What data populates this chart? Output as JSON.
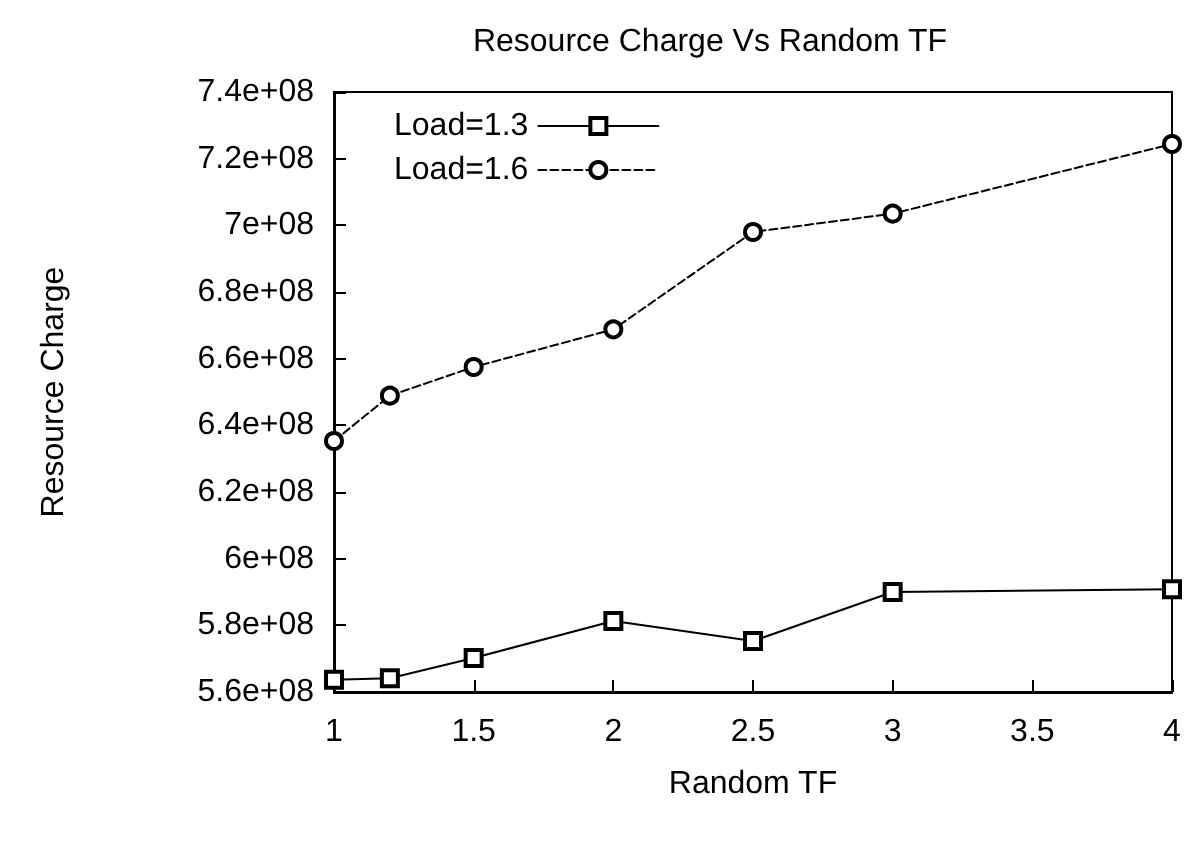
{
  "chart_data": {
    "type": "line",
    "title": "Resource Charge Vs Random TF",
    "xlabel": "Random TF",
    "ylabel": "Resource Charge",
    "x": [
      1,
      1.2,
      1.5,
      2,
      2.5,
      3,
      4
    ],
    "series": [
      {
        "name": "Load=1.3",
        "color": "#000000",
        "marker": "square",
        "line_style": "solid",
        "values": [
          563700000,
          564100000,
          570200000,
          581300000,
          575300000,
          590000000,
          590800000
        ]
      },
      {
        "name": "Load=1.6",
        "color": "#000000",
        "marker": "circle",
        "line_style": "dashed",
        "values": [
          635300000,
          648900000,
          657500000,
          668800000,
          698000000,
          703500000,
          724400000
        ]
      }
    ],
    "xlim": [
      1,
      4
    ],
    "xticks": [
      1,
      1.5,
      2,
      2.5,
      3,
      3.5,
      4
    ],
    "ylim": [
      560000000,
      740000000
    ],
    "yticks": [
      {
        "value": 560000000,
        "label": "5.6e+08"
      },
      {
        "value": 580000000,
        "label": "5.8e+08"
      },
      {
        "value": 600000000,
        "label": "6e+08"
      },
      {
        "value": 620000000,
        "label": "6.2e+08"
      },
      {
        "value": 640000000,
        "label": "6.4e+08"
      },
      {
        "value": 660000000,
        "label": "6.6e+08"
      },
      {
        "value": 680000000,
        "label": "6.8e+08"
      },
      {
        "value": 700000000,
        "label": "7e+08"
      },
      {
        "value": 720000000,
        "label": "7.2e+08"
      },
      {
        "value": 740000000,
        "label": "7.4e+08"
      }
    ],
    "grid": false,
    "legend": "top left"
  }
}
